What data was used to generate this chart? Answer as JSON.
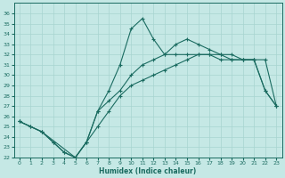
{
  "xlabel": "Humidex (Indice chaleur)",
  "bg_color": "#c5e8e5",
  "grid_color": "#a8d4d0",
  "line_color": "#1a6b60",
  "xlim": [
    -0.5,
    23.5
  ],
  "ylim": [
    22.0,
    37.0
  ],
  "xticks": [
    0,
    1,
    2,
    3,
    4,
    5,
    6,
    7,
    8,
    9,
    10,
    11,
    12,
    13,
    14,
    15,
    16,
    17,
    18,
    19,
    20,
    21,
    22,
    23
  ],
  "yticks": [
    22,
    23,
    24,
    25,
    26,
    27,
    28,
    29,
    30,
    31,
    32,
    33,
    34,
    35,
    36
  ],
  "s1_x": [
    0,
    1,
    2,
    3,
    4,
    5,
    6,
    7,
    8,
    9,
    10,
    11,
    12,
    13,
    14,
    15,
    16,
    17,
    18,
    19,
    20,
    21,
    22,
    23
  ],
  "s1_y": [
    25.5,
    25.0,
    24.5,
    23.5,
    22.5,
    22.0,
    23.5,
    25.0,
    26.5,
    28.0,
    29.0,
    29.5,
    30.0,
    30.5,
    31.0,
    31.5,
    32.0,
    32.0,
    31.5,
    31.5,
    31.5,
    31.5,
    28.5,
    27.0
  ],
  "s2_x": [
    0,
    1,
    2,
    3,
    4,
    5,
    6,
    7,
    8,
    9,
    10,
    11,
    12,
    13,
    14,
    15,
    16,
    17,
    18,
    19,
    20,
    21,
    22,
    23
  ],
  "s2_y": [
    25.5,
    25.0,
    24.5,
    23.5,
    22.5,
    22.0,
    23.5,
    26.5,
    28.5,
    31.0,
    34.5,
    35.5,
    33.5,
    32.0,
    33.0,
    33.5,
    33.0,
    32.5,
    32.0,
    31.5,
    31.5,
    31.5,
    28.5,
    27.0
  ],
  "s3_x": [
    0,
    2,
    5,
    6,
    7,
    8,
    9,
    10,
    11,
    12,
    13,
    14,
    15,
    16,
    17,
    18,
    19,
    20,
    21,
    22,
    23
  ],
  "s3_y": [
    25.5,
    24.5,
    22.0,
    23.5,
    26.5,
    27.5,
    28.5,
    30.0,
    31.0,
    31.5,
    32.0,
    32.0,
    32.0,
    32.0,
    32.0,
    32.0,
    32.0,
    31.5,
    31.5,
    31.5,
    27.0
  ]
}
